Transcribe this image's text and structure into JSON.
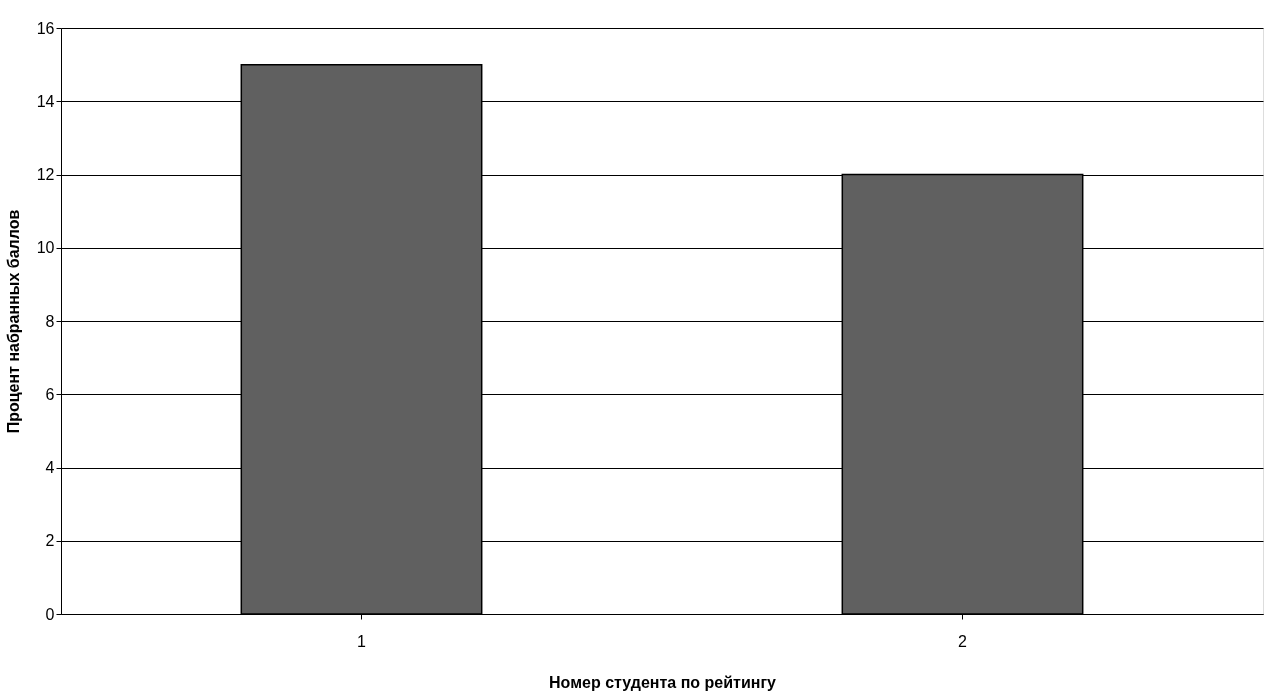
{
  "chart_data": {
    "type": "bar",
    "categories": [
      "1",
      "2"
    ],
    "values": [
      15,
      12
    ],
    "color": "#606060",
    "xlabel": "Номер студента по рейтингу",
    "ylabel": "Процент набранных баллов",
    "ylim": [
      0,
      16
    ],
    "yticks": [
      0,
      2,
      4,
      6,
      8,
      10,
      12,
      14,
      16
    ],
    "grid": "y"
  }
}
